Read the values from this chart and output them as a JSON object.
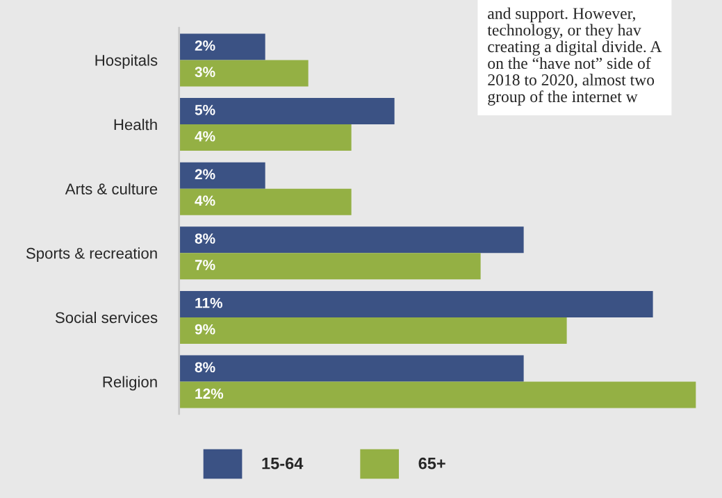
{
  "chart_data": {
    "type": "bar",
    "orientation": "horizontal",
    "legend": "bottom",
    "grid": false,
    "categories": [
      "Hospitals",
      "Health",
      "Arts & culture",
      "Sports & recreation",
      "Social services",
      "Religion"
    ],
    "series": [
      {
        "name": "15-64",
        "color": "#3b5284",
        "values": [
          2,
          5,
          2,
          8,
          11,
          8
        ],
        "value_labels": [
          "2%",
          "5%",
          "2%",
          "8%",
          "11%",
          "8%"
        ]
      },
      {
        "name": "65+",
        "color": "#94b044",
        "values": [
          3,
          4,
          4,
          7,
          9,
          12
        ],
        "value_labels": [
          "3%",
          "4%",
          "4%",
          "7%",
          "9%",
          "12%"
        ]
      }
    ],
    "annotations": [
      "and support. However,\ntechnology, or they hav\ncreating a digital divide. A\non the “have not” side of\n2018 to 2020, almost two\ngroup of the internet w"
    ]
  }
}
